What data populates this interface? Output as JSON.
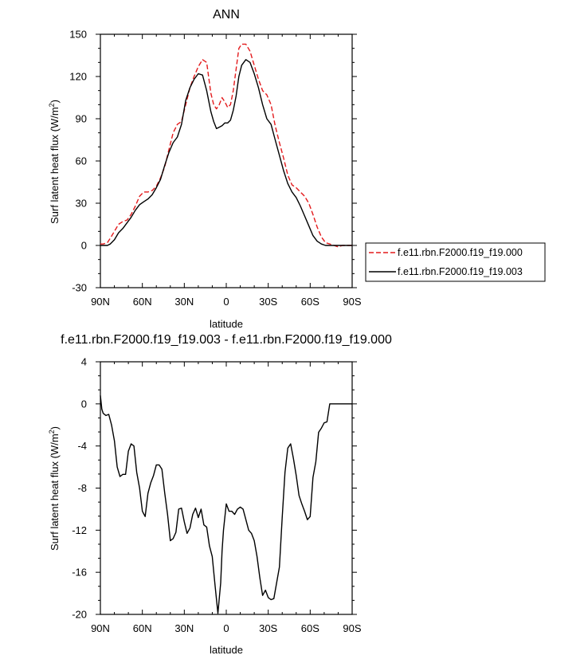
{
  "chart_data": [
    {
      "type": "line",
      "title": "ANN",
      "xlabel": "latitude",
      "ylabel": "Surf latent heat flux (W/m",
      "ylabel_sup": "2",
      "ylabel_close": ")",
      "xlim": [
        90,
        -90
      ],
      "ylim": [
        -30,
        150
      ],
      "x_ticks": [
        90,
        60,
        30,
        0,
        -30,
        -60,
        -90
      ],
      "x_tick_labels": [
        "90N",
        "60N",
        "30N",
        "0",
        "30S",
        "60S",
        "90S"
      ],
      "y_ticks": [
        -30,
        0,
        30,
        60,
        90,
        120,
        150
      ],
      "y_tick_labels": [
        "-30",
        "0",
        "30",
        "60",
        "90",
        "120",
        "150"
      ],
      "legend_position": "right",
      "series": [
        {
          "name": "f.e11.rbn.F2000.f19_f19.000",
          "color": "#e31a1c",
          "dash": "dashed",
          "x": [
            90,
            88,
            85,
            83,
            80,
            77,
            74,
            71,
            68,
            65,
            62,
            59,
            56,
            53,
            50,
            47,
            44,
            41,
            38,
            35,
            32,
            29,
            26,
            23,
            20,
            17,
            14,
            11,
            9,
            7,
            5,
            3,
            1,
            -1,
            -3,
            -5,
            -7,
            -9,
            -11,
            -14,
            -17,
            -20,
            -23,
            -26,
            -29,
            -32,
            -35,
            -38,
            -41,
            -44,
            -47,
            -50,
            -53,
            -56,
            -59,
            -62,
            -65,
            -68,
            -71,
            -74,
            -77,
            -80,
            -83,
            -86,
            -90
          ],
          "y": [
            1,
            1,
            2,
            5,
            10,
            15,
            17,
            18,
            22,
            28,
            35,
            38,
            38,
            39,
            42,
            48,
            56,
            68,
            80,
            86,
            88,
            100,
            112,
            120,
            127,
            132,
            130,
            108,
            100,
            97,
            100,
            105,
            102,
            98,
            100,
            110,
            125,
            140,
            143,
            143,
            138,
            128,
            118,
            110,
            107,
            100,
            85,
            73,
            62,
            50,
            43,
            41,
            38,
            35,
            30,
            22,
            13,
            6,
            2,
            1,
            0,
            -1,
            0,
            0,
            0
          ]
        },
        {
          "name": "f.e11.rbn.F2000.f19_f19.003",
          "color": "#000000",
          "dash": "solid",
          "x": [
            90,
            88,
            85,
            83,
            80,
            77,
            74,
            71,
            68,
            65,
            62,
            59,
            56,
            53,
            50,
            47,
            44,
            41,
            38,
            35,
            32,
            29,
            26,
            23,
            20,
            17,
            14,
            11,
            9,
            7,
            5,
            3,
            1,
            -1,
            -3,
            -5,
            -7,
            -9,
            -11,
            -14,
            -17,
            -20,
            -23,
            -26,
            -29,
            -32,
            -35,
            -38,
            -41,
            -44,
            -47,
            -50,
            -53,
            -56,
            -59,
            -62,
            -65,
            -68,
            -71,
            -74,
            -77,
            -80,
            -83,
            -86,
            -90
          ],
          "y": [
            0,
            0,
            0,
            1,
            4,
            9,
            12,
            16,
            20,
            25,
            29,
            31,
            33,
            36,
            41,
            47,
            57,
            66,
            73,
            77,
            86,
            103,
            112,
            118,
            122,
            121,
            110,
            95,
            88,
            83,
            84,
            85,
            87,
            87,
            89,
            96,
            106,
            120,
            128,
            132,
            130,
            122,
            112,
            100,
            90,
            86,
            75,
            64,
            53,
            44,
            38,
            34,
            28,
            21,
            14,
            7,
            3,
            1,
            0,
            0,
            0,
            0,
            0,
            0,
            0
          ]
        }
      ]
    },
    {
      "type": "line",
      "title": "f.e11.rbn.F2000.f19_f19.003 - f.e11.rbn.F2000.f19_f19.000",
      "xlabel": "latitude",
      "ylabel": "Surf latent heat flux (W/m",
      "ylabel_sup": "2",
      "ylabel_close": ")",
      "xlim": [
        90,
        -90
      ],
      "ylim": [
        -20,
        4
      ],
      "x_ticks": [
        90,
        60,
        30,
        0,
        -30,
        -60,
        -90
      ],
      "x_tick_labels": [
        "90N",
        "60N",
        "30N",
        "0",
        "30S",
        "60S",
        "90S"
      ],
      "y_ticks": [
        -20,
        -16,
        -12,
        -8,
        -4,
        0,
        4
      ],
      "y_tick_labels": [
        "-20",
        "-16",
        "-12",
        "-8",
        "-4",
        "0",
        "4"
      ],
      "series": [
        {
          "color": "#000000",
          "dash": "solid",
          "x": [
            90,
            89,
            88,
            86,
            84,
            82,
            80,
            78,
            76,
            74,
            72,
            70,
            68,
            66,
            64,
            62,
            60,
            58,
            56,
            54,
            52,
            50,
            48,
            46,
            44,
            42,
            40,
            38,
            36,
            34,
            32,
            30,
            28,
            26,
            24,
            22,
            20,
            18,
            16,
            14,
            12,
            10,
            8,
            6,
            4,
            3,
            2,
            0,
            -2,
            -4,
            -6,
            -8,
            -10,
            -12,
            -14,
            -16,
            -18,
            -20,
            -22,
            -24,
            -26,
            -28,
            -30,
            -32,
            -34,
            -36,
            -38,
            -40,
            -42,
            -44,
            -46,
            -48,
            -50,
            -52,
            -54,
            -56,
            -58,
            -60,
            -62,
            -64,
            -66,
            -68,
            -70,
            -72,
            -74,
            -76,
            -78,
            -80,
            -82,
            -84,
            -86,
            -88,
            -90
          ],
          "y": [
            0.8,
            -0.5,
            -0.9,
            -1.1,
            -1.0,
            -2.0,
            -3.5,
            -6.0,
            -6.9,
            -6.7,
            -6.7,
            -4.5,
            -3.8,
            -4.0,
            -6.5,
            -8.0,
            -10.2,
            -10.7,
            -8.5,
            -7.5,
            -6.8,
            -5.8,
            -5.8,
            -6.2,
            -8.5,
            -10.5,
            -13.0,
            -12.8,
            -12.2,
            -10.0,
            -9.9,
            -11.2,
            -12.3,
            -11.8,
            -10.5,
            -9.9,
            -10.8,
            -10.0,
            -11.5,
            -11.7,
            -13.5,
            -14.5,
            -17.3,
            -19.9,
            -17.0,
            -14.0,
            -12.0,
            -9.5,
            -10.2,
            -10.2,
            -10.5,
            -10.0,
            -9.8,
            -10.0,
            -11.0,
            -12.0,
            -12.3,
            -13.0,
            -14.5,
            -16.5,
            -18.2,
            -17.7,
            -18.4,
            -18.6,
            -18.5,
            -17.0,
            -15.5,
            -10.8,
            -6.5,
            -4.2,
            -3.8,
            -5.2,
            -6.8,
            -8.7,
            -9.5,
            -10.2,
            -11.0,
            -10.7,
            -7.0,
            -5.5,
            -2.7,
            -2.3,
            -1.8,
            -1.7,
            0.0,
            0.0,
            0.0,
            0.0,
            0.0,
            0.0,
            0.0,
            0.0,
            0.0
          ]
        }
      ]
    }
  ]
}
